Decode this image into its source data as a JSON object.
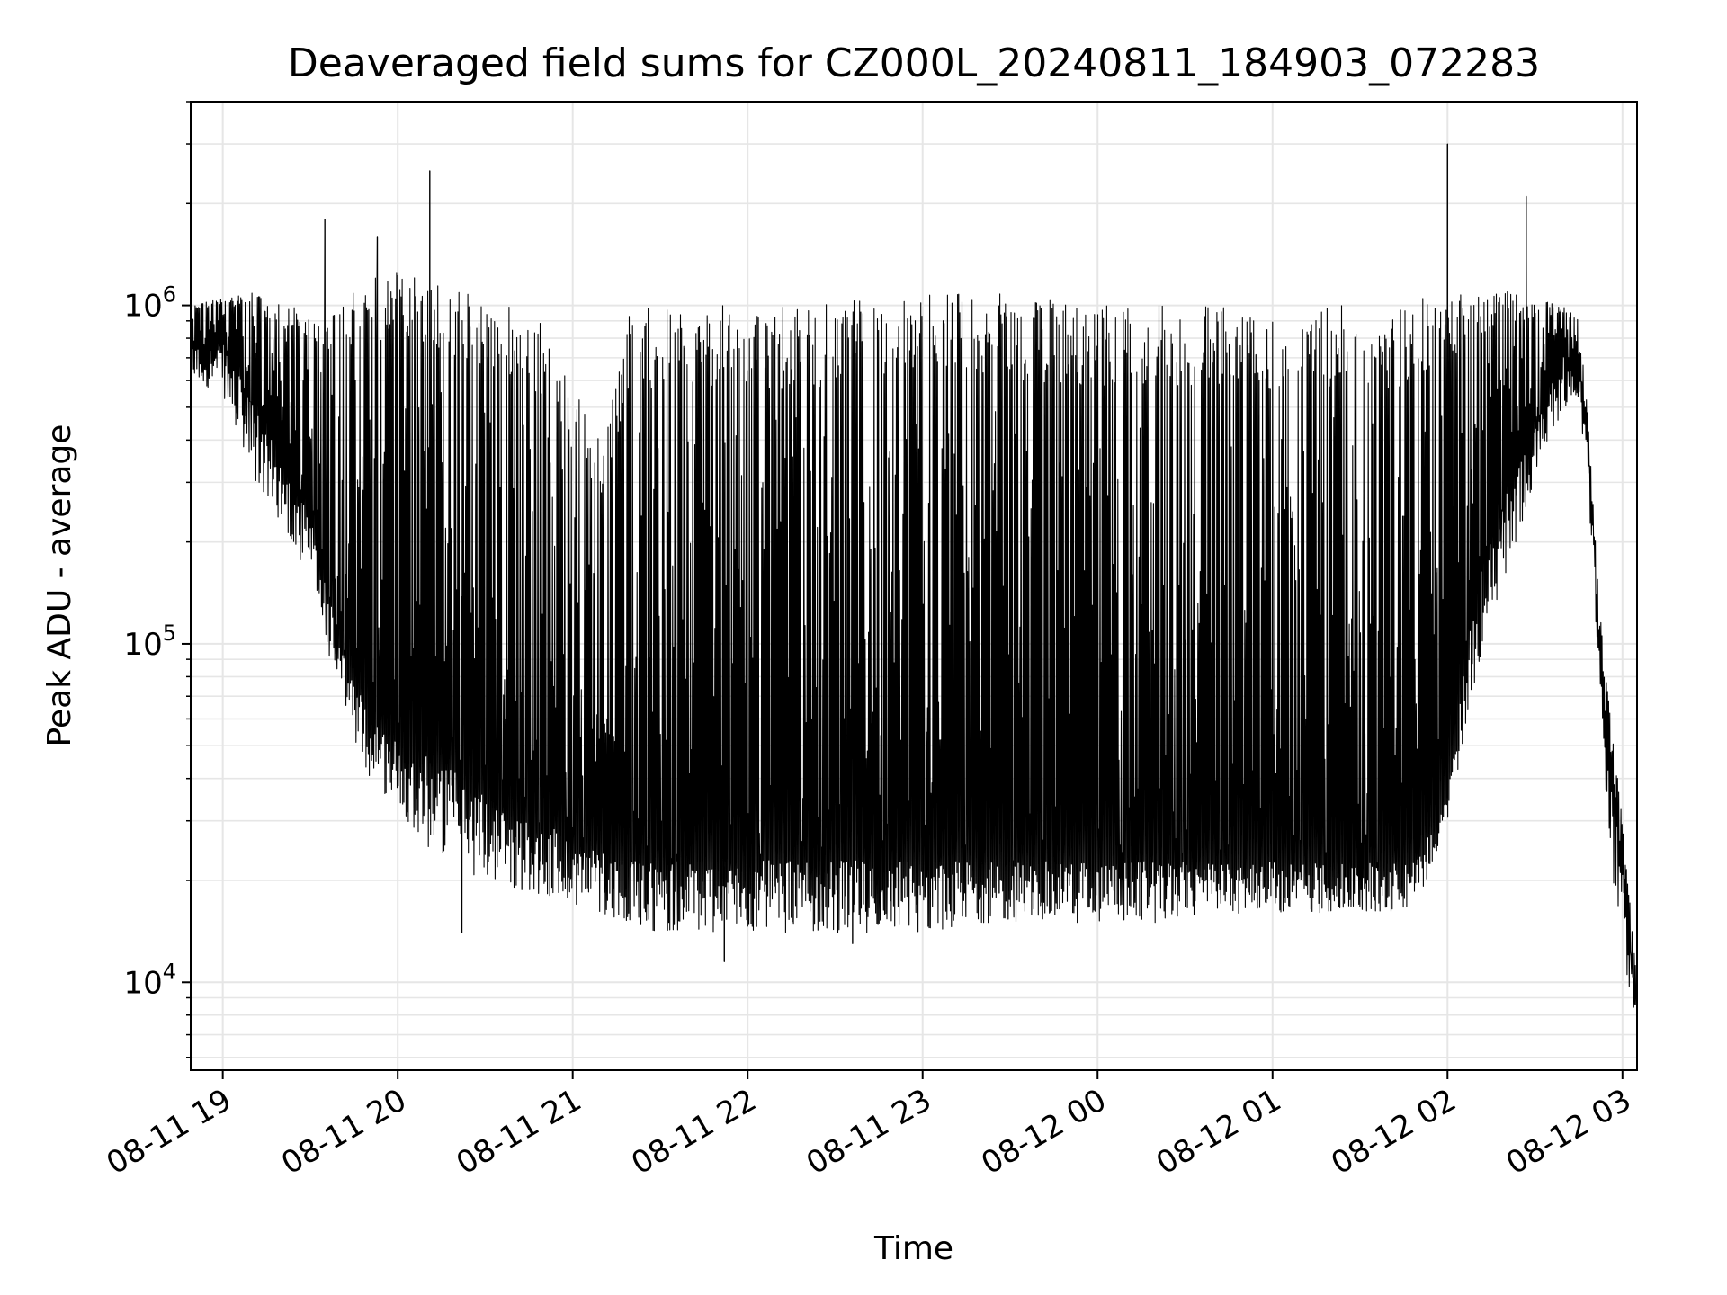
{
  "chart_data": {
    "type": "line",
    "title": "Deaveraged field sums for CZ000L_20240811_184903_072283",
    "xlabel": "Time",
    "ylabel": "Peak ADU - average",
    "yscale": "log",
    "ylim": [
      5500,
      4000000
    ],
    "xlim": [
      "2024-08-11 18:49",
      "2024-08-12 03:05"
    ],
    "grid": true,
    "legend": "none",
    "colors": {
      "line": "#000000",
      "grid": "#e6e6e6",
      "axes": "#000000"
    },
    "x_ticks": [
      {
        "t": "2024-08-11 19:00",
        "label": "08-11 19"
      },
      {
        "t": "2024-08-11 20:00",
        "label": "08-11 20"
      },
      {
        "t": "2024-08-11 21:00",
        "label": "08-11 21"
      },
      {
        "t": "2024-08-11 22:00",
        "label": "08-11 22"
      },
      {
        "t": "2024-08-11 23:00",
        "label": "08-11 23"
      },
      {
        "t": "2024-08-12 00:00",
        "label": "08-12 00"
      },
      {
        "t": "2024-08-12 01:00",
        "label": "08-12 01"
      },
      {
        "t": "2024-08-12 02:00",
        "label": "08-12 02"
      },
      {
        "t": "2024-08-12 03:00",
        "label": "08-12 03"
      }
    ],
    "y_ticks": [
      {
        "value": 10000,
        "base": "10",
        "exp": "4"
      },
      {
        "value": 100000,
        "base": "10",
        "exp": "5"
      },
      {
        "value": 1000000,
        "base": "10",
        "exp": "6"
      }
    ],
    "series": [
      {
        "envelope": {
          "x": [
            "2024-08-11 18:49",
            "2024-08-11 19:00",
            "2024-08-11 19:10",
            "2024-08-11 19:20",
            "2024-08-11 19:30",
            "2024-08-11 19:40",
            "2024-08-11 19:50",
            "2024-08-11 20:00",
            "2024-08-11 20:10",
            "2024-08-11 20:20",
            "2024-08-11 20:30",
            "2024-08-11 20:40",
            "2024-08-11 20:50",
            "2024-08-11 21:00",
            "2024-08-11 21:10",
            "2024-08-11 21:20",
            "2024-08-11 21:30",
            "2024-08-11 21:40",
            "2024-08-11 22:00",
            "2024-08-11 22:20",
            "2024-08-11 22:40",
            "2024-08-11 23:00",
            "2024-08-11 23:20",
            "2024-08-11 23:40",
            "2024-08-12 00:00",
            "2024-08-12 00:20",
            "2024-08-12 00:40",
            "2024-08-12 01:00",
            "2024-08-12 01:20",
            "2024-08-12 01:40",
            "2024-08-12 01:50",
            "2024-08-12 02:00",
            "2024-08-12 02:10",
            "2024-08-12 02:20",
            "2024-08-12 02:30",
            "2024-08-12 02:40",
            "2024-08-12 02:45",
            "2024-08-12 02:48",
            "2024-08-12 02:52",
            "2024-08-12 02:56",
            "2024-08-12 03:00",
            "2024-08-12 03:05"
          ],
          "baseline": [
            750000,
            750000,
            500000,
            340000,
            230000,
            100000,
            60000,
            50000,
            45000,
            40000,
            35000,
            30000,
            28000,
            26000,
            24000,
            22000,
            22000,
            22000,
            22000,
            22000,
            22000,
            22000,
            22000,
            22000,
            22000,
            22000,
            22000,
            22000,
            22000,
            22000,
            23000,
            35000,
            150000,
            260000,
            420000,
            700000,
            700000,
            400000,
            100000,
            40000,
            20000,
            8000
          ],
          "peak": [
            1000000,
            1050000,
            1100000,
            1000000,
            1000000,
            1000000,
            1200000,
            1300000,
            1250000,
            1150000,
            1050000,
            1000000,
            900000,
            600000,
            400000,
            1000000,
            1000000,
            1000000,
            1000000,
            1000000,
            1050000,
            1100000,
            1100000,
            1050000,
            1000000,
            1000000,
            1000000,
            1000000,
            1000000,
            1000000,
            1050000,
            1100000,
            1100000,
            1100000,
            1050000,
            1000000,
            900000,
            500000,
            130000,
            60000,
            30000,
            10000
          ],
          "spike_low": [
            600000,
            550000,
            300000,
            230000,
            150000,
            70000,
            40000,
            33000,
            25000,
            22000,
            20000,
            19000,
            18000,
            17000,
            16000,
            15000,
            14000,
            14000,
            14000,
            14000,
            14000,
            14000,
            15000,
            15000,
            15000,
            15000,
            16000,
            16000,
            16000,
            16000,
            17000,
            30000,
            80000,
            150000,
            300000,
            500000,
            500000,
            300000,
            80000,
            20000,
            12000,
            7500
          ]
        },
        "spikes": [
          {
            "t": "2024-08-11 19:35",
            "y": 1800000
          },
          {
            "t": "2024-08-11 19:53",
            "y": 1600000
          },
          {
            "t": "2024-08-11 20:11",
            "y": 2500000
          },
          {
            "t": "2024-08-11 20:22",
            "y": 14000
          },
          {
            "t": "2024-08-11 21:52",
            "y": 11500
          },
          {
            "t": "2024-08-11 22:36",
            "y": 13000
          },
          {
            "t": "2024-08-12 02:00",
            "y": 3000000
          },
          {
            "t": "2024-08-12 02:27",
            "y": 2100000
          }
        ]
      }
    ]
  }
}
